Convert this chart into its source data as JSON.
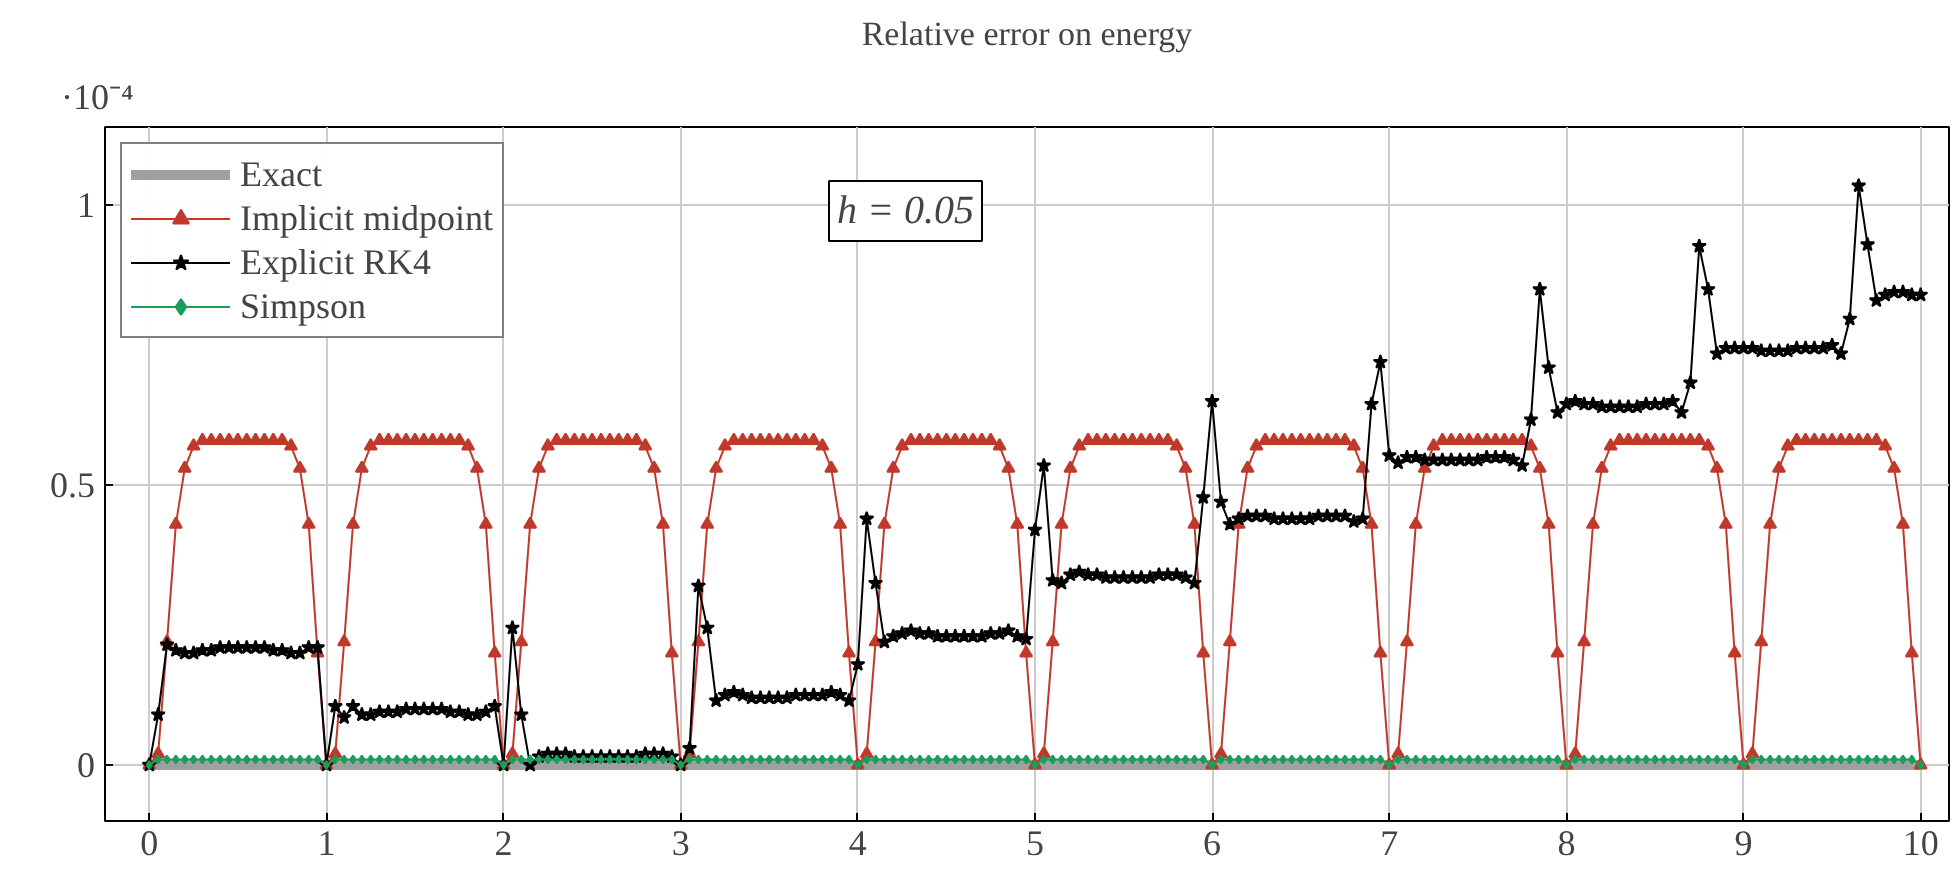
{
  "chart_data": {
    "type": "line",
    "title": "Relative error on energy",
    "annotations": [
      "·10⁻⁴",
      "h = 0.05"
    ],
    "x": [
      0,
      0.05,
      0.1,
      0.15,
      0.2,
      0.25,
      0.3,
      0.35,
      0.4,
      0.45,
      0.5,
      0.55,
      0.6,
      0.65,
      0.7,
      0.75,
      0.8,
      0.85,
      0.9,
      0.95,
      1,
      1.05,
      1.1,
      1.15,
      1.2,
      1.25,
      1.3,
      1.35,
      1.4,
      1.45,
      1.5,
      1.55,
      1.6,
      1.65,
      1.7,
      1.75,
      1.8,
      1.85,
      1.9,
      1.95,
      2,
      2.05,
      2.1,
      2.15,
      2.2,
      2.25,
      2.3,
      2.35,
      2.4,
      2.45,
      2.5,
      2.55,
      2.6,
      2.65,
      2.7,
      2.75,
      2.8,
      2.85,
      2.9,
      2.95,
      3,
      3.05,
      3.1,
      3.15,
      3.2,
      3.25,
      3.3,
      3.35,
      3.4,
      3.45,
      3.5,
      3.55,
      3.6,
      3.65,
      3.7,
      3.75,
      3.8,
      3.85,
      3.9,
      3.95,
      4,
      4.05,
      4.1,
      4.15,
      4.2,
      4.25,
      4.3,
      4.35,
      4.4,
      4.45,
      4.5,
      4.55,
      4.6,
      4.65,
      4.7,
      4.75,
      4.8,
      4.85,
      4.9,
      4.95,
      5,
      5.05,
      5.1,
      5.15,
      5.2,
      5.25,
      5.3,
      5.35,
      5.4,
      5.45,
      5.5,
      5.55,
      5.6,
      5.65,
      5.7,
      5.75,
      5.8,
      5.85,
      5.9,
      5.95,
      6,
      6.05,
      6.1,
      6.15,
      6.2,
      6.25,
      6.3,
      6.35,
      6.4,
      6.45,
      6.5,
      6.55,
      6.6,
      6.65,
      6.7,
      6.75,
      6.8,
      6.85,
      6.9,
      6.95,
      7,
      7.05,
      7.1,
      7.15,
      7.2,
      7.25,
      7.3,
      7.35,
      7.4,
      7.45,
      7.5,
      7.55,
      7.6,
      7.65,
      7.7,
      7.75,
      7.8,
      7.85,
      7.9,
      7.95,
      8,
      8.05,
      8.1,
      8.15,
      8.2,
      8.25,
      8.3,
      8.35,
      8.4,
      8.45,
      8.5,
      8.55,
      8.6,
      8.65,
      8.7,
      8.75,
      8.8,
      8.85,
      8.9,
      8.95,
      9,
      9.05,
      9.1,
      9.15,
      9.2,
      9.25,
      9.3,
      9.35,
      9.4,
      9.45,
      9.5,
      9.55,
      9.6,
      9.65,
      9.7,
      9.75,
      9.8,
      9.85,
      9.9,
      9.95,
      10
    ],
    "xlim": [
      -0.25,
      10.16
    ],
    "ylim": [
      -0.1,
      1.14
    ],
    "xticks": [
      0,
      1,
      2,
      3,
      4,
      5,
      6,
      7,
      8,
      9,
      10
    ],
    "yticks": [
      0,
      0.5,
      1
    ],
    "grid": true,
    "legend": "top left",
    "series": [
      {
        "name": "Exact",
        "color": "#a0a0a0",
        "marker": "none",
        "x": [
          0,
          10
        ],
        "values": [
          0,
          0
        ]
      },
      {
        "name": "Implicit midpoint",
        "color": "#c0392b",
        "marker": "triangle",
        "values": [
          0,
          0.02,
          0.22,
          0.43,
          0.53,
          0.57,
          0.58,
          0.58,
          0.58,
          0.58,
          0.58,
          0.58,
          0.58,
          0.58,
          0.58,
          0.58,
          0.57,
          0.53,
          0.43,
          0.2,
          0,
          0.02,
          0.22,
          0.43,
          0.53,
          0.57,
          0.58,
          0.58,
          0.58,
          0.58,
          0.58,
          0.58,
          0.58,
          0.58,
          0.58,
          0.58,
          0.57,
          0.53,
          0.43,
          0.2,
          0,
          0.02,
          0.22,
          0.43,
          0.53,
          0.57,
          0.58,
          0.58,
          0.58,
          0.58,
          0.58,
          0.58,
          0.58,
          0.58,
          0.58,
          0.58,
          0.57,
          0.53,
          0.43,
          0.2,
          0,
          0.02,
          0.22,
          0.43,
          0.53,
          0.57,
          0.58,
          0.58,
          0.58,
          0.58,
          0.58,
          0.58,
          0.58,
          0.58,
          0.58,
          0.58,
          0.57,
          0.53,
          0.43,
          0.2,
          0,
          0.02,
          0.22,
          0.43,
          0.53,
          0.57,
          0.58,
          0.58,
          0.58,
          0.58,
          0.58,
          0.58,
          0.58,
          0.58,
          0.58,
          0.58,
          0.57,
          0.53,
          0.43,
          0.2,
          0,
          0.02,
          0.22,
          0.43,
          0.53,
          0.57,
          0.58,
          0.58,
          0.58,
          0.58,
          0.58,
          0.58,
          0.58,
          0.58,
          0.58,
          0.58,
          0.57,
          0.53,
          0.43,
          0.2,
          0,
          0.02,
          0.22,
          0.43,
          0.53,
          0.57,
          0.58,
          0.58,
          0.58,
          0.58,
          0.58,
          0.58,
          0.58,
          0.58,
          0.58,
          0.58,
          0.57,
          0.53,
          0.43,
          0.2,
          0,
          0.02,
          0.22,
          0.43,
          0.53,
          0.57,
          0.58,
          0.58,
          0.58,
          0.58,
          0.58,
          0.58,
          0.58,
          0.58,
          0.58,
          0.58,
          0.57,
          0.53,
          0.43,
          0.2,
          0,
          0.02,
          0.22,
          0.43,
          0.53,
          0.57,
          0.58,
          0.58,
          0.58,
          0.58,
          0.58,
          0.58,
          0.58,
          0.58,
          0.58,
          0.58,
          0.57,
          0.53,
          0.43,
          0.2,
          0,
          0.02,
          0.22,
          0.43,
          0.53,
          0.57,
          0.58,
          0.58,
          0.58,
          0.58,
          0.58,
          0.58,
          0.58,
          0.58,
          0.58,
          0.58,
          0.57,
          0.53,
          0.43,
          0.2,
          0
        ]
      },
      {
        "name": "Explicit RK4",
        "color": "#000000",
        "marker": "star",
        "values": [
          0,
          0.09,
          0.215,
          0.205,
          0.2,
          0.2,
          0.205,
          0.205,
          0.21,
          0.21,
          0.21,
          0.21,
          0.21,
          0.21,
          0.205,
          0.205,
          0.2,
          0.2,
          0.21,
          0.21,
          0,
          0.105,
          0.085,
          0.105,
          0.09,
          0.09,
          0.095,
          0.095,
          0.095,
          0.1,
          0.1,
          0.1,
          0.1,
          0.1,
          0.095,
          0.095,
          0.09,
          0.09,
          0.095,
          0.105,
          0,
          0.245,
          0.09,
          0,
          0.015,
          0.02,
          0.02,
          0.02,
          0.015,
          0.015,
          0.015,
          0.015,
          0.015,
          0.015,
          0.015,
          0.015,
          0.02,
          0.02,
          0.02,
          0.015,
          0,
          0.03,
          0.32,
          0.245,
          0.115,
          0.125,
          0.13,
          0.125,
          0.12,
          0.12,
          0.12,
          0.12,
          0.12,
          0.125,
          0.125,
          0.125,
          0.125,
          0.13,
          0.125,
          0.115,
          0.18,
          0.44,
          0.325,
          0.22,
          0.23,
          0.235,
          0.24,
          0.235,
          0.235,
          0.23,
          0.23,
          0.23,
          0.23,
          0.23,
          0.23,
          0.235,
          0.235,
          0.24,
          0.23,
          0.225,
          0.42,
          0.535,
          0.33,
          0.325,
          0.34,
          0.345,
          0.34,
          0.34,
          0.335,
          0.335,
          0.335,
          0.335,
          0.335,
          0.335,
          0.34,
          0.34,
          0.34,
          0.335,
          0.325,
          0.478,
          0.65,
          0.47,
          0.43,
          0.44,
          0.445,
          0.445,
          0.445,
          0.44,
          0.44,
          0.44,
          0.44,
          0.44,
          0.445,
          0.445,
          0.445,
          0.445,
          0.435,
          0.44,
          0.645,
          0.72,
          0.553,
          0.54,
          0.55,
          0.55,
          0.545,
          0.545,
          0.545,
          0.545,
          0.545,
          0.545,
          0.545,
          0.55,
          0.55,
          0.55,
          0.545,
          0.535,
          0.617,
          0.85,
          0.71,
          0.63,
          0.645,
          0.65,
          0.645,
          0.645,
          0.64,
          0.64,
          0.64,
          0.64,
          0.64,
          0.645,
          0.645,
          0.645,
          0.65,
          0.63,
          0.683,
          0.927,
          0.85,
          0.735,
          0.745,
          0.745,
          0.745,
          0.745,
          0.74,
          0.74,
          0.74,
          0.74,
          0.745,
          0.745,
          0.745,
          0.745,
          0.75,
          0.735,
          0.797,
          1.035,
          0.93,
          0.83,
          0.84,
          0.845,
          0.845,
          0.84,
          0.84
        ]
      },
      {
        "name": "Simpson",
        "color": "#1a9e5c",
        "marker": "diamond",
        "values": [
          0,
          0.01,
          0.01,
          0.01,
          0.01,
          0.01,
          0.01,
          0.01,
          0.01,
          0.01,
          0.01,
          0.01,
          0.01,
          0.01,
          0.01,
          0.01,
          0.01,
          0.01,
          0.01,
          0.01,
          0,
          0.01,
          0.01,
          0.01,
          0.01,
          0.01,
          0.01,
          0.01,
          0.01,
          0.01,
          0.01,
          0.01,
          0.01,
          0.01,
          0.01,
          0.01,
          0.01,
          0.01,
          0.01,
          0.01,
          0,
          0.01,
          0.01,
          0.01,
          0.01,
          0.01,
          0.01,
          0.01,
          0.01,
          0.01,
          0.01,
          0.01,
          0.01,
          0.01,
          0.01,
          0.01,
          0.01,
          0.01,
          0.01,
          0.01,
          0,
          0.01,
          0.01,
          0.01,
          0.01,
          0.01,
          0.01,
          0.01,
          0.01,
          0.01,
          0.01,
          0.01,
          0.01,
          0.01,
          0.01,
          0.01,
          0.01,
          0.01,
          0.01,
          0.01,
          0,
          0.01,
          0.01,
          0.01,
          0.01,
          0.01,
          0.01,
          0.01,
          0.01,
          0.01,
          0.01,
          0.01,
          0.01,
          0.01,
          0.01,
          0.01,
          0.01,
          0.01,
          0.01,
          0.01,
          0,
          0.01,
          0.01,
          0.01,
          0.01,
          0.01,
          0.01,
          0.01,
          0.01,
          0.01,
          0.01,
          0.01,
          0.01,
          0.01,
          0.01,
          0.01,
          0.01,
          0.01,
          0.01,
          0.01,
          0,
          0.01,
          0.01,
          0.01,
          0.01,
          0.01,
          0.01,
          0.01,
          0.01,
          0.01,
          0.01,
          0.01,
          0.01,
          0.01,
          0.01,
          0.01,
          0.01,
          0.01,
          0.01,
          0.01,
          0,
          0.01,
          0.01,
          0.01,
          0.01,
          0.01,
          0.01,
          0.01,
          0.01,
          0.01,
          0.01,
          0.01,
          0.01,
          0.01,
          0.01,
          0.01,
          0.01,
          0.01,
          0.01,
          0.01,
          0,
          0.01,
          0.01,
          0.01,
          0.01,
          0.01,
          0.01,
          0.01,
          0.01,
          0.01,
          0.01,
          0.01,
          0.01,
          0.01,
          0.01,
          0.01,
          0.01,
          0.01,
          0.01,
          0.01,
          0,
          0.01,
          0.01,
          0.01,
          0.01,
          0.01,
          0.01,
          0.01,
          0.01,
          0.01,
          0.01,
          0.01,
          0.01,
          0.01,
          0.01,
          0.01,
          0.01,
          0.01,
          0.01,
          0.01,
          0
        ]
      }
    ]
  }
}
